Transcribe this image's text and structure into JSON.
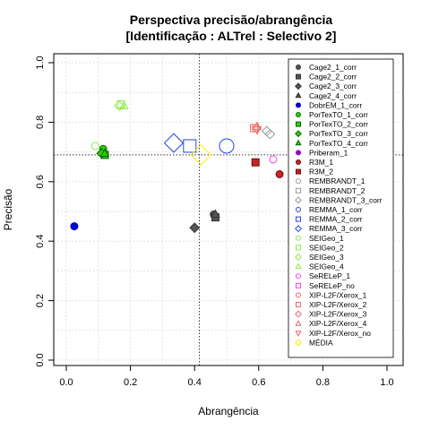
{
  "chart_data": {
    "type": "scatter",
    "title": "Perspectiva precisão/abrangência",
    "subtitle": "[Identificação : ALTrel : Selectivo 2]",
    "xlabel": "Abrangência",
    "ylabel": "Precisão",
    "xlim": [
      0,
      1
    ],
    "ylim": [
      0,
      1
    ],
    "x_ticks": [
      "0.0",
      "0.2",
      "0.4",
      "0.6",
      "0.8",
      "1.0"
    ],
    "y_ticks": [
      "0.0",
      "0.2",
      "0.4",
      "0.6",
      "0.8",
      "1.0"
    ],
    "grid": true,
    "legend_position": "right",
    "reference_lines": {
      "x": 0.415,
      "y": 0.69
    },
    "series": [
      {
        "name": "Cage2_1_corr",
        "marker": "circle",
        "fill": "#555555",
        "stroke": "#333333",
        "points": [
          [
            0.46,
            0.49
          ]
        ]
      },
      {
        "name": "Cage2_2_corr",
        "marker": "square",
        "fill": "#555555",
        "stroke": "#333333",
        "points": [
          [
            0.465,
            0.48
          ]
        ]
      },
      {
        "name": "Cage2_3_corr",
        "marker": "diamond",
        "fill": "#555555",
        "stroke": "#333333",
        "points": [
          [
            0.4,
            0.445
          ]
        ]
      },
      {
        "name": "Cage2_4_corr",
        "marker": "triangle",
        "fill": "#555555",
        "stroke": "#333333",
        "points": [
          [
            0.465,
            0.49
          ]
        ]
      },
      {
        "name": "DobrEM_1_corr",
        "marker": "circle",
        "fill": "#0000cc",
        "stroke": "#0000cc",
        "points": [
          [
            0.025,
            0.45
          ]
        ]
      },
      {
        "name": "PorTexTO_1_corr",
        "marker": "circle",
        "fill": "#33cc00",
        "stroke": "#006600",
        "points": [
          [
            0.115,
            0.71
          ]
        ]
      },
      {
        "name": "PorTexTO_2_corr",
        "marker": "square",
        "fill": "#33cc00",
        "stroke": "#006600",
        "points": [
          [
            0.12,
            0.69
          ]
        ]
      },
      {
        "name": "PorTexTO_3_corr",
        "marker": "diamond",
        "fill": "#33cc00",
        "stroke": "#006600",
        "points": [
          [
            0.11,
            0.695
          ]
        ]
      },
      {
        "name": "PorTexTO_4_corr",
        "marker": "triangle",
        "fill": "#33cc00",
        "stroke": "#006600",
        "points": [
          [
            0.12,
            0.695
          ]
        ]
      },
      {
        "name": "Priberam_1",
        "marker": "circle",
        "fill": "#9900cc",
        "stroke": "#9900cc",
        "points": []
      },
      {
        "name": "R3M_1",
        "marker": "circle",
        "fill": "#cc2222",
        "stroke": "#661111",
        "points": [
          [
            0.665,
            0.625
          ]
        ]
      },
      {
        "name": "R3M_2",
        "marker": "square",
        "fill": "#cc2222",
        "stroke": "#661111",
        "points": [
          [
            0.59,
            0.665
          ]
        ]
      },
      {
        "name": "REMBRANDT_1",
        "marker": "circle",
        "fill": "none",
        "stroke": "#999999",
        "points": []
      },
      {
        "name": "REMBRANDT_2",
        "marker": "square",
        "fill": "none",
        "stroke": "#999999",
        "points": []
      },
      {
        "name": "REMBRANDT_3_corr",
        "marker": "diamond",
        "fill": "none",
        "stroke": "#999999",
        "points": [
          [
            0.625,
            0.77
          ],
          [
            0.635,
            0.76
          ]
        ]
      },
      {
        "name": "REMMA_1_corr",
        "marker": "circle",
        "fill": "none",
        "stroke": "#2244ee",
        "points": [
          [
            0.5,
            0.72
          ]
        ]
      },
      {
        "name": "REMMA_2_corr",
        "marker": "square",
        "fill": "none",
        "stroke": "#2244ee",
        "points": [
          [
            0.385,
            0.72
          ]
        ]
      },
      {
        "name": "REMMA_3_corr",
        "marker": "diamond",
        "fill": "none",
        "stroke": "#2244ee",
        "points": [
          [
            0.335,
            0.73
          ]
        ]
      },
      {
        "name": "SEIGeo_1",
        "marker": "circle",
        "fill": "none",
        "stroke": "#88ee44",
        "points": [
          [
            0.09,
            0.72
          ]
        ]
      },
      {
        "name": "SEIGeo_2",
        "marker": "square",
        "fill": "none",
        "stroke": "#88ee44",
        "points": [
          [
            0.17,
            0.86
          ]
        ]
      },
      {
        "name": "SEIGeo_3",
        "marker": "diamond",
        "fill": "none",
        "stroke": "#88ee44",
        "points": [
          [
            0.165,
            0.855
          ]
        ]
      },
      {
        "name": "SEIGeo_4",
        "marker": "triangle",
        "fill": "none",
        "stroke": "#88ee44",
        "points": [
          [
            0.18,
            0.855
          ]
        ]
      },
      {
        "name": "SeRELeP_1",
        "marker": "circle",
        "fill": "none",
        "stroke": "#ee44ee",
        "points": [
          [
            0.645,
            0.675
          ]
        ]
      },
      {
        "name": "SeRELeP_no",
        "marker": "square",
        "fill": "none",
        "stroke": "#ee44ee",
        "points": []
      },
      {
        "name": "XIP-L2F/Xerox_1",
        "marker": "circle",
        "fill": "none",
        "stroke": "#ee6666",
        "points": [
          [
            0.59,
            0.78
          ]
        ]
      },
      {
        "name": "XIP-L2F/Xerox_2",
        "marker": "square",
        "fill": "none",
        "stroke": "#ee6666",
        "points": [
          [
            0.585,
            0.78
          ]
        ]
      },
      {
        "name": "XIP-L2F/Xerox_3",
        "marker": "diamond",
        "fill": "none",
        "stroke": "#ee6666",
        "points": []
      },
      {
        "name": "XIP-L2F/Xerox_4",
        "marker": "triangle",
        "fill": "none",
        "stroke": "#ee6666",
        "points": [
          [
            0.595,
            0.785
          ]
        ]
      },
      {
        "name": "XIP-L2F/Xerox_no",
        "marker": "triangle-down",
        "fill": "none",
        "stroke": "#ee6666",
        "points": [
          [
            0.595,
            0.775
          ]
        ]
      },
      {
        "name": "MÉDIA",
        "marker": "diamond",
        "fill": "none",
        "stroke": "#ffee00",
        "points": [
          [
            0.42,
            0.69
          ]
        ]
      }
    ]
  }
}
